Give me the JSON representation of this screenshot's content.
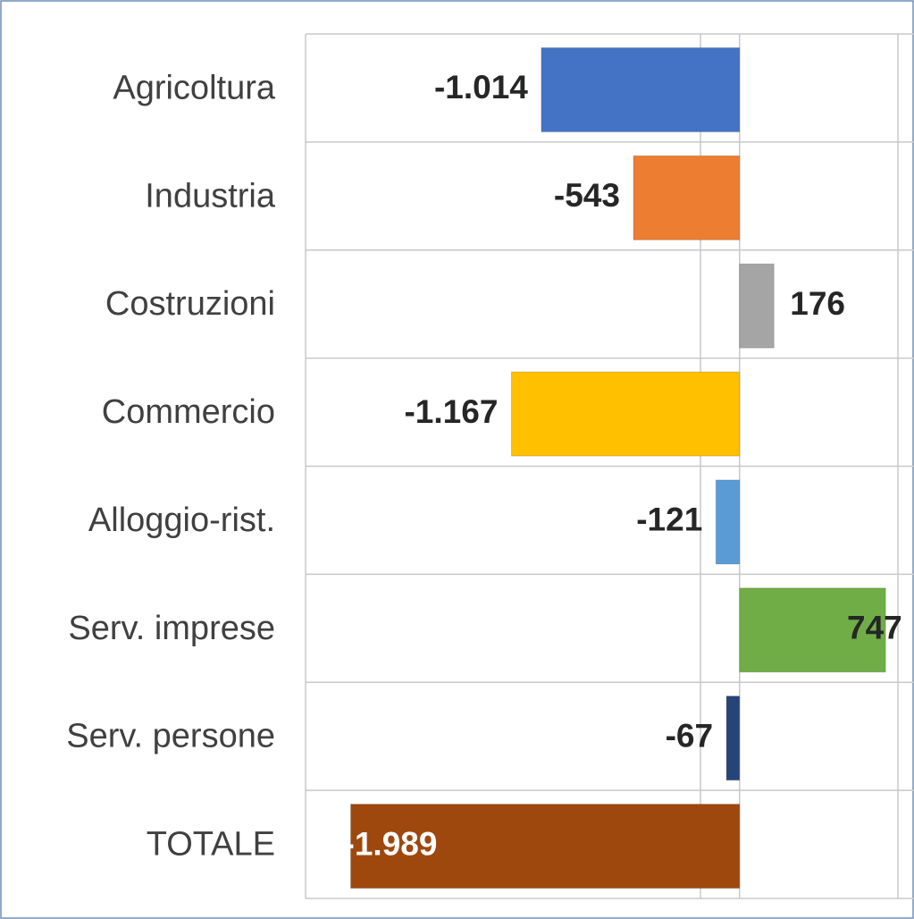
{
  "chart_data": {
    "type": "barh",
    "categories": [
      "Agricoltura",
      "Industria",
      "Costruzioni",
      "Commercio",
      "Alloggio-rist.",
      "Serv. imprese",
      "Serv. persone",
      "TOTALE"
    ],
    "values": [
      -1014,
      -543,
      176,
      -1167,
      -121,
      747,
      -67,
      -1989
    ],
    "value_labels": [
      "-1.014",
      "-543",
      "176",
      "-1.167",
      "-121",
      "747",
      "-67",
      "-1.989"
    ],
    "colors": [
      "#4472c4",
      "#ed7d31",
      "#a5a5a5",
      "#ffc000",
      "#5b9bd5",
      "#70ad47",
      "#264478",
      "#9e480e"
    ],
    "xlim": [
      -2220,
      810
    ],
    "xticks": [
      -200,
      0
    ],
    "grid": true
  }
}
